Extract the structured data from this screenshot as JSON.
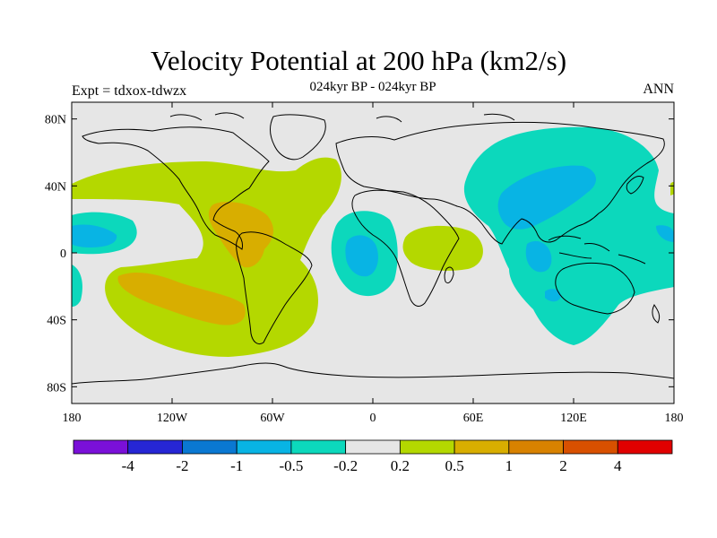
{
  "title": "Velocity Potential at 200 hPa (km2/s)",
  "subtitle": "024kyr BP - 024kyr BP",
  "expt_label": "Expt = tdxox-tdwzx",
  "season": "ANN",
  "background_color": "#e6e6e6",
  "lat_ticks": [
    "80N",
    "40N",
    "0",
    "40S",
    "80S"
  ],
  "lon_ticks": [
    "180",
    "120W",
    "60W",
    "0",
    "60E",
    "120E",
    "180"
  ],
  "colorbar": {
    "colors": [
      "#7a10d8",
      "#2626d4",
      "#0a78d2",
      "#08b4e4",
      "#0cd8bc",
      "#e6e6e6",
      "#b4d800",
      "#d8ae00",
      "#d88200",
      "#d85000",
      "#e00000"
    ],
    "labels": [
      "-4",
      "-2",
      "-1",
      "-0.5",
      "-0.2",
      "0.2",
      "0.5",
      "1",
      "2",
      "4"
    ]
  }
}
